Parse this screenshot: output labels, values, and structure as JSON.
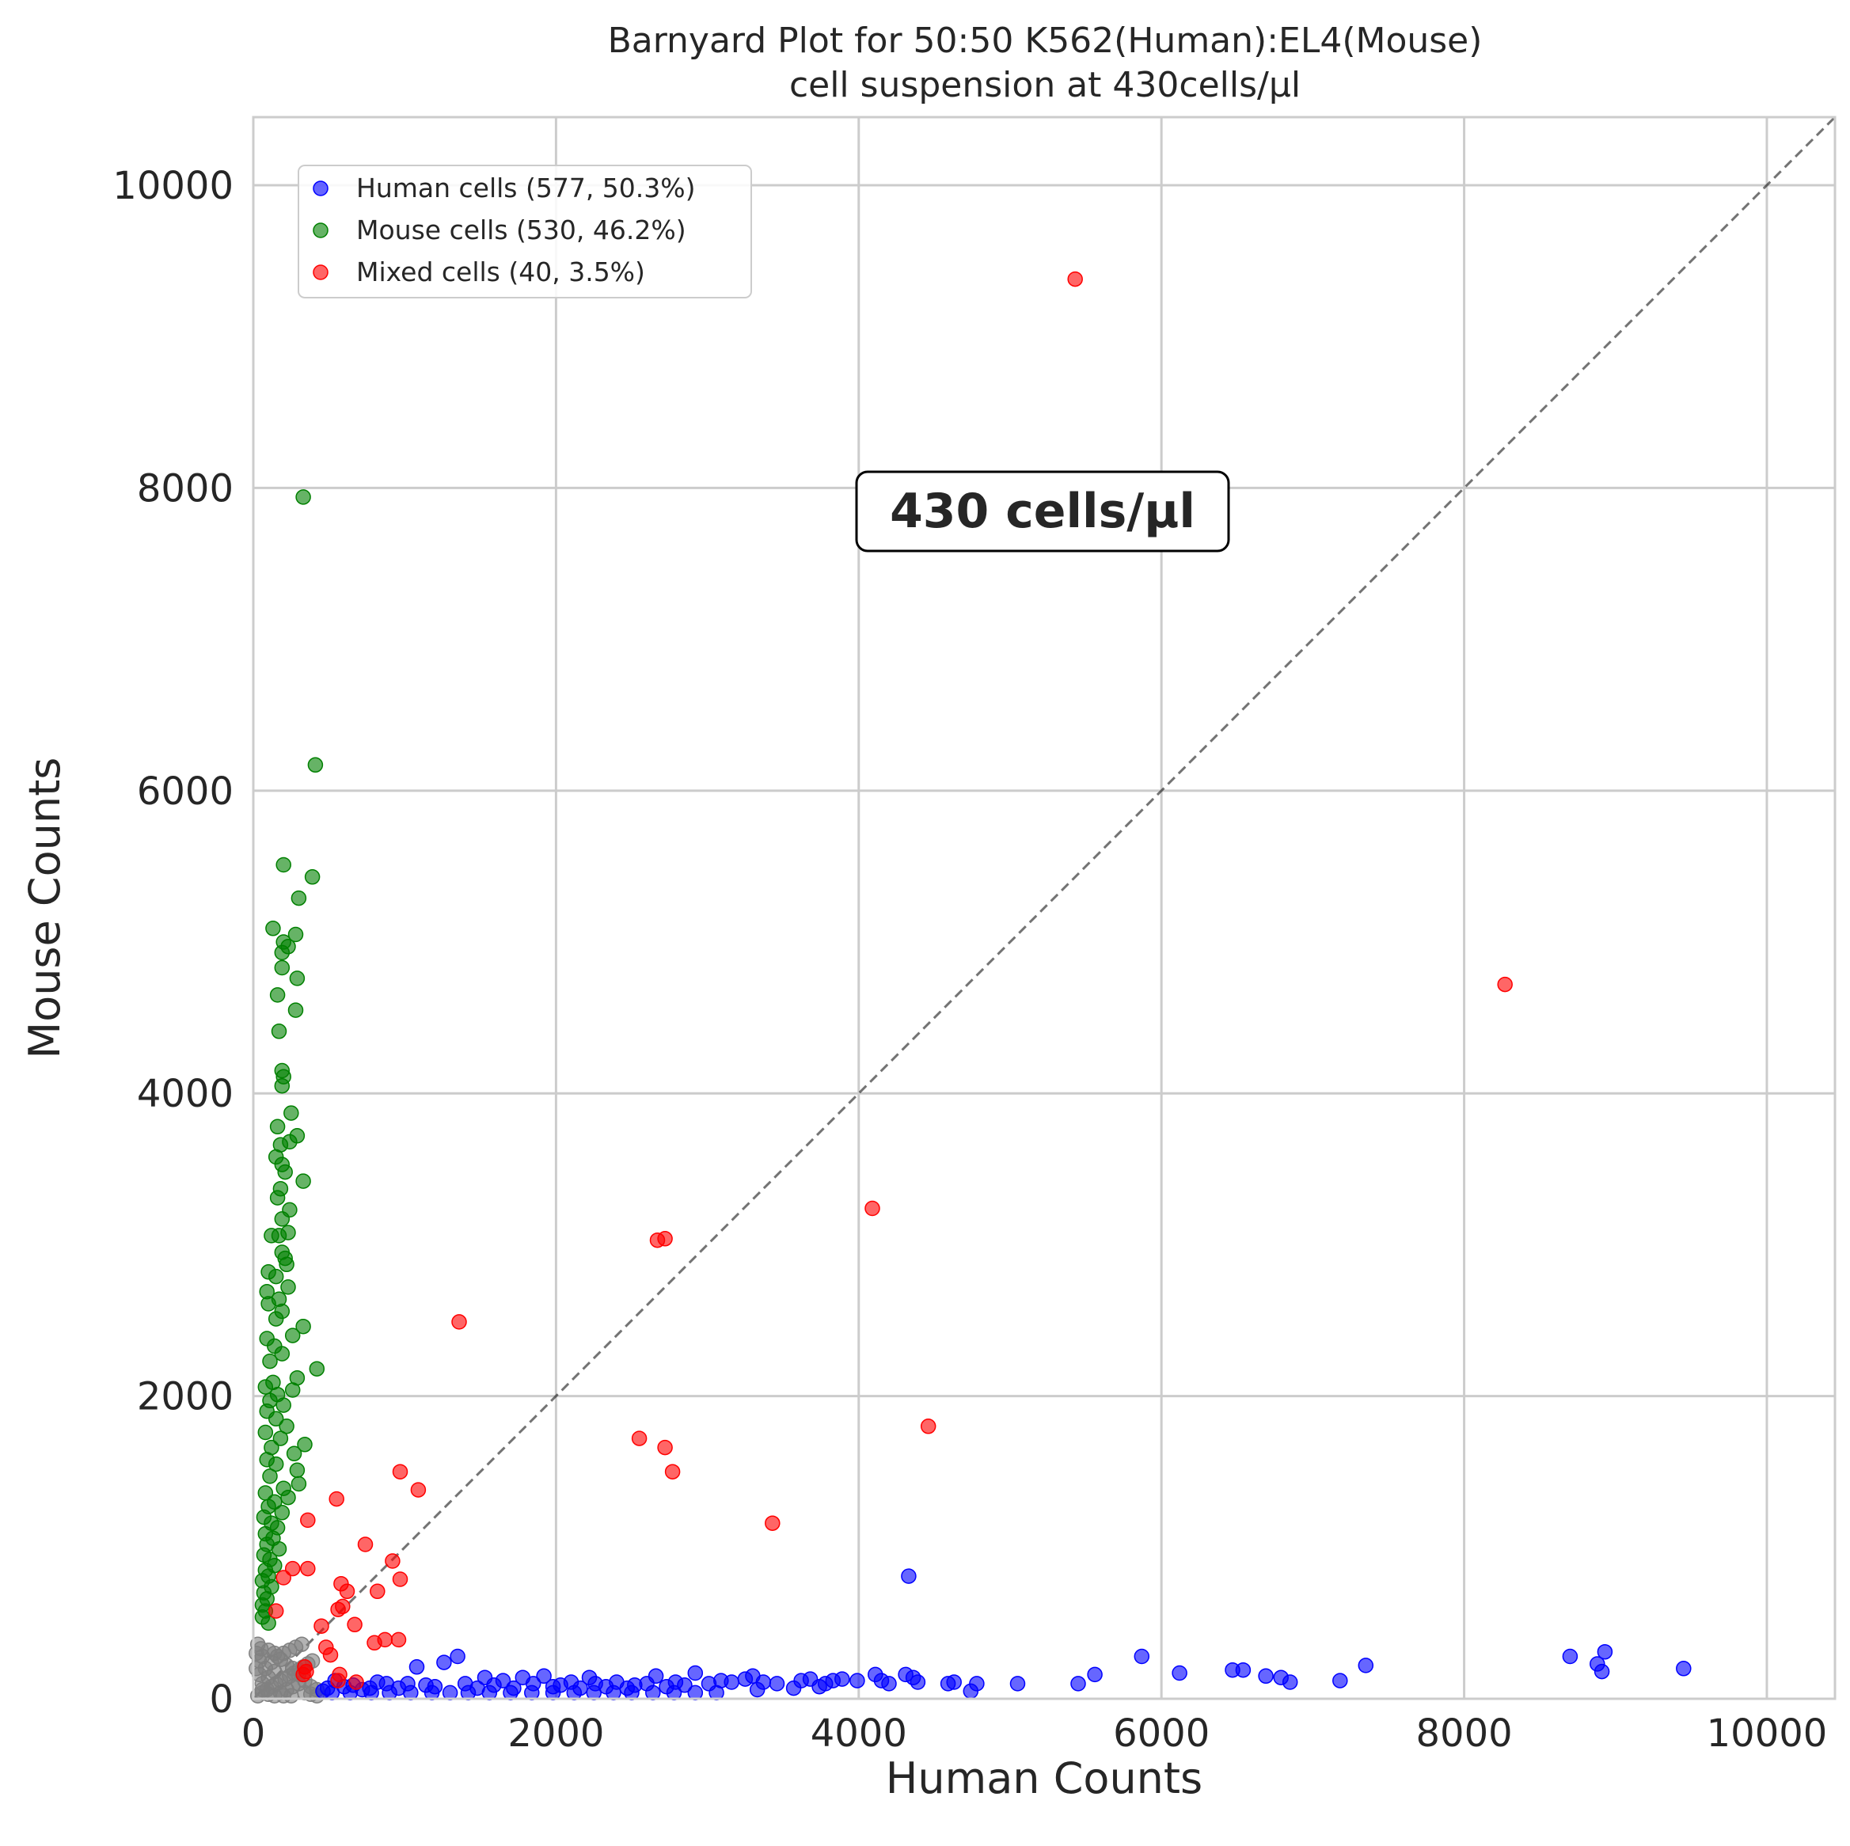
{
  "chart_data": {
    "type": "scatter",
    "title": "Barnyard Plot for 50:50 K562(Human):EL4(Mouse)",
    "subtitle": "cell suspension at 430cells/µl",
    "xlabel": "Human Counts",
    "ylabel": "Mouse Counts",
    "xlim": [
      0,
      10450
    ],
    "ylim": [
      0,
      10450
    ],
    "xticks": [
      "0",
      "2000",
      "4000",
      "6000",
      "8000",
      "10000"
    ],
    "yticks": [
      "0",
      "2000",
      "4000",
      "6000",
      "8000",
      "10000"
    ],
    "xtick_values": [
      0,
      2000,
      4000,
      6000,
      8000,
      10000
    ],
    "ytick_values": [
      0,
      2000,
      4000,
      6000,
      8000,
      10000
    ],
    "grid": true,
    "legend_position": "top-left",
    "diagonal_line": true,
    "annotation": "430 cells/µl",
    "series": [
      {
        "name": "Human cells (577, 50.3%)",
        "color": "#0000ff",
        "points": [
          [
            4330,
            810
          ],
          [
            8930,
            310
          ],
          [
            8700,
            280
          ],
          [
            8880,
            230
          ],
          [
            8910,
            180
          ],
          [
            9450,
            200
          ],
          [
            7350,
            220
          ],
          [
            7180,
            120
          ],
          [
            6850,
            110
          ],
          [
            6790,
            140
          ],
          [
            6690,
            150
          ],
          [
            6540,
            190
          ],
          [
            6470,
            190
          ],
          [
            6120,
            170
          ],
          [
            5870,
            280
          ],
          [
            5560,
            160
          ],
          [
            5450,
            100
          ],
          [
            5050,
            100
          ],
          [
            4780,
            100
          ],
          [
            4740,
            50
          ],
          [
            4630,
            110
          ],
          [
            4590,
            100
          ],
          [
            4390,
            110
          ],
          [
            4360,
            140
          ],
          [
            4310,
            160
          ],
          [
            4200,
            100
          ],
          [
            4150,
            120
          ],
          [
            4110,
            160
          ],
          [
            3990,
            120
          ],
          [
            3890,
            130
          ],
          [
            3830,
            120
          ],
          [
            3780,
            100
          ],
          [
            3740,
            80
          ],
          [
            3680,
            130
          ],
          [
            3620,
            120
          ],
          [
            3570,
            70
          ],
          [
            3460,
            100
          ],
          [
            3370,
            110
          ],
          [
            3330,
            60
          ],
          [
            3300,
            150
          ],
          [
            3250,
            130
          ],
          [
            3160,
            110
          ],
          [
            3090,
            120
          ],
          [
            3010,
            100
          ],
          [
            2920,
            170
          ],
          [
            2850,
            90
          ],
          [
            2790,
            110
          ],
          [
            2730,
            80
          ],
          [
            2660,
            150
          ],
          [
            2600,
            100
          ],
          [
            2520,
            90
          ],
          [
            2470,
            70
          ],
          [
            2400,
            110
          ],
          [
            2330,
            80
          ],
          [
            2260,
            100
          ],
          [
            2220,
            140
          ],
          [
            2160,
            70
          ],
          [
            2100,
            110
          ],
          [
            2030,
            90
          ],
          [
            1980,
            80
          ],
          [
            1920,
            150
          ],
          [
            1850,
            100
          ],
          [
            1780,
            140
          ],
          [
            1720,
            70
          ],
          [
            1650,
            120
          ],
          [
            1590,
            90
          ],
          [
            1530,
            140
          ],
          [
            1480,
            70
          ],
          [
            1400,
            100
          ],
          [
            1350,
            280
          ],
          [
            1260,
            240
          ],
          [
            1200,
            80
          ],
          [
            1140,
            90
          ],
          [
            1080,
            210
          ],
          [
            1020,
            100
          ],
          [
            960,
            70
          ],
          [
            880,
            100
          ],
          [
            820,
            110
          ],
          [
            770,
            70
          ],
          [
            720,
            60
          ],
          [
            660,
            90
          ],
          [
            600,
            80
          ],
          [
            540,
            120
          ],
          [
            490,
            70
          ],
          [
            460,
            50
          ],
          [
            520,
            40
          ],
          [
            640,
            40
          ],
          [
            780,
            40
          ],
          [
            900,
            40
          ],
          [
            1040,
            40
          ],
          [
            1180,
            40
          ],
          [
            1300,
            40
          ],
          [
            1420,
            40
          ],
          [
            1560,
            40
          ],
          [
            1700,
            40
          ],
          [
            1840,
            40
          ],
          [
            1980,
            40
          ],
          [
            2120,
            40
          ],
          [
            2250,
            40
          ],
          [
            2380,
            40
          ],
          [
            2500,
            40
          ],
          [
            2640,
            40
          ],
          [
            2780,
            40
          ],
          [
            2920,
            40
          ],
          [
            3060,
            40
          ]
        ]
      },
      {
        "name": "Mouse cells (530, 46.2%)",
        "color": "#008000",
        "points": [
          [
            330,
            7940
          ],
          [
            410,
            6170
          ],
          [
            200,
            5510
          ],
          [
            390,
            5430
          ],
          [
            300,
            5290
          ],
          [
            130,
            5090
          ],
          [
            280,
            5050
          ],
          [
            200,
            5000
          ],
          [
            230,
            4970
          ],
          [
            190,
            4930
          ],
          [
            290,
            4760
          ],
          [
            190,
            4830
          ],
          [
            160,
            4650
          ],
          [
            280,
            4550
          ],
          [
            170,
            4410
          ],
          [
            190,
            4150
          ],
          [
            200,
            4110
          ],
          [
            190,
            4050
          ],
          [
            250,
            3870
          ],
          [
            160,
            3780
          ],
          [
            290,
            3720
          ],
          [
            240,
            3680
          ],
          [
            180,
            3660
          ],
          [
            150,
            3580
          ],
          [
            190,
            3530
          ],
          [
            210,
            3480
          ],
          [
            330,
            3420
          ],
          [
            180,
            3370
          ],
          [
            160,
            3310
          ],
          [
            240,
            3230
          ],
          [
            190,
            3170
          ],
          [
            230,
            3080
          ],
          [
            170,
            3060
          ],
          [
            120,
            3060
          ],
          [
            190,
            2950
          ],
          [
            210,
            2910
          ],
          [
            220,
            2870
          ],
          [
            100,
            2820
          ],
          [
            150,
            2790
          ],
          [
            230,
            2720
          ],
          [
            90,
            2690
          ],
          [
            170,
            2640
          ],
          [
            100,
            2610
          ],
          [
            190,
            2560
          ],
          [
            150,
            2510
          ],
          [
            330,
            2460
          ],
          [
            260,
            2400
          ],
          [
            90,
            2380
          ],
          [
            140,
            2330
          ],
          [
            190,
            2280
          ],
          [
            110,
            2230
          ],
          [
            420,
            2180
          ],
          [
            290,
            2120
          ],
          [
            130,
            2090
          ],
          [
            80,
            2060
          ],
          [
            260,
            2040
          ],
          [
            160,
            2010
          ],
          [
            110,
            1970
          ],
          [
            200,
            1940
          ],
          [
            90,
            1900
          ],
          [
            150,
            1850
          ],
          [
            220,
            1800
          ],
          [
            80,
            1760
          ],
          [
            180,
            1720
          ],
          [
            340,
            1680
          ],
          [
            120,
            1660
          ],
          [
            270,
            1620
          ],
          [
            90,
            1580
          ],
          [
            150,
            1550
          ],
          [
            290,
            1510
          ],
          [
            110,
            1470
          ],
          [
            300,
            1420
          ],
          [
            200,
            1390
          ],
          [
            80,
            1360
          ],
          [
            230,
            1330
          ],
          [
            140,
            1300
          ],
          [
            100,
            1270
          ],
          [
            190,
            1230
          ],
          [
            70,
            1200
          ],
          [
            120,
            1160
          ],
          [
            160,
            1130
          ],
          [
            80,
            1090
          ],
          [
            130,
            1060
          ],
          [
            90,
            1020
          ],
          [
            170,
            990
          ],
          [
            70,
            950
          ],
          [
            110,
            920
          ],
          [
            140,
            880
          ],
          [
            80,
            850
          ],
          [
            100,
            810
          ],
          [
            60,
            780
          ],
          [
            120,
            740
          ],
          [
            70,
            700
          ],
          [
            90,
            660
          ],
          [
            60,
            620
          ],
          [
            80,
            580
          ],
          [
            60,
            540
          ],
          [
            100,
            500
          ]
        ]
      },
      {
        "name": "Mixed cells (40, 3.5%)",
        "color": "#ff0000",
        "points": [
          [
            5430,
            9380
          ],
          [
            8270,
            4720
          ],
          [
            4090,
            3240
          ],
          [
            2720,
            3040
          ],
          [
            2670,
            3030
          ],
          [
            1360,
            2490
          ],
          [
            4460,
            1800
          ],
          [
            2550,
            1720
          ],
          [
            2720,
            1660
          ],
          [
            2770,
            1500
          ],
          [
            970,
            1500
          ],
          [
            1090,
            1380
          ],
          [
            550,
            1320
          ],
          [
            3430,
            1160
          ],
          [
            360,
            1180
          ],
          [
            740,
            1020
          ],
          [
            920,
            910
          ],
          [
            360,
            860
          ],
          [
            260,
            860
          ],
          [
            200,
            800
          ],
          [
            970,
            790
          ],
          [
            580,
            760
          ],
          [
            620,
            710
          ],
          [
            820,
            710
          ],
          [
            590,
            610
          ],
          [
            560,
            590
          ],
          [
            150,
            580
          ],
          [
            670,
            490
          ],
          [
            450,
            480
          ],
          [
            960,
            390
          ],
          [
            870,
            390
          ],
          [
            800,
            370
          ],
          [
            480,
            340
          ],
          [
            510,
            290
          ],
          [
            340,
            210
          ],
          [
            350,
            180
          ],
          [
            330,
            160
          ],
          [
            570,
            160
          ],
          [
            560,
            120
          ],
          [
            680,
            110
          ]
        ]
      },
      {
        "name": "",
        "color": "#808080",
        "points": [
          [
            30,
            20
          ],
          [
            60,
            40
          ],
          [
            90,
            60
          ],
          [
            120,
            80
          ],
          [
            150,
            100
          ],
          [
            180,
            120
          ],
          [
            210,
            130
          ],
          [
            240,
            150
          ],
          [
            270,
            170
          ],
          [
            300,
            190
          ],
          [
            330,
            210
          ],
          [
            360,
            230
          ],
          [
            390,
            250
          ],
          [
            40,
            160
          ],
          [
            80,
            200
          ],
          [
            120,
            240
          ],
          [
            160,
            280
          ],
          [
            200,
            300
          ],
          [
            240,
            320
          ],
          [
            280,
            340
          ],
          [
            320,
            360
          ],
          [
            60,
            280
          ],
          [
            100,
            320
          ],
          [
            140,
            300
          ],
          [
            180,
            260
          ],
          [
            220,
            220
          ],
          [
            260,
            200
          ],
          [
            300,
            160
          ],
          [
            340,
            120
          ],
          [
            380,
            80
          ],
          [
            420,
            60
          ],
          [
            60,
            100
          ],
          [
            100,
            140
          ],
          [
            140,
            180
          ],
          [
            180,
            40
          ],
          [
            220,
            60
          ],
          [
            260,
            80
          ],
          [
            300,
            100
          ],
          [
            340,
            40
          ],
          [
            380,
            30
          ],
          [
            420,
            20
          ],
          [
            30,
            360
          ],
          [
            50,
            330
          ],
          [
            20,
            300
          ],
          [
            40,
            250
          ],
          [
            20,
            200
          ],
          [
            60,
            60
          ],
          [
            100,
            30
          ],
          [
            140,
            20
          ],
          [
            200,
            20
          ],
          [
            250,
            20
          ]
        ]
      }
    ]
  }
}
